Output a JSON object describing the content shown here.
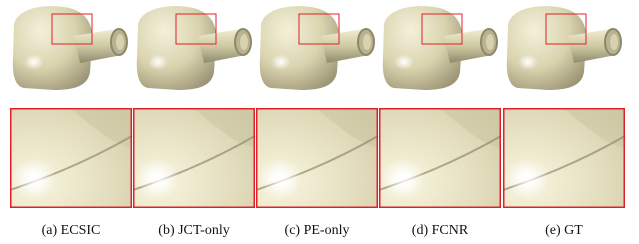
{
  "captions": [
    "(a) ECSIC",
    "(b) JCT-only",
    "(c) PE-only",
    "(d) FCNR",
    "(e) GT"
  ]
}
